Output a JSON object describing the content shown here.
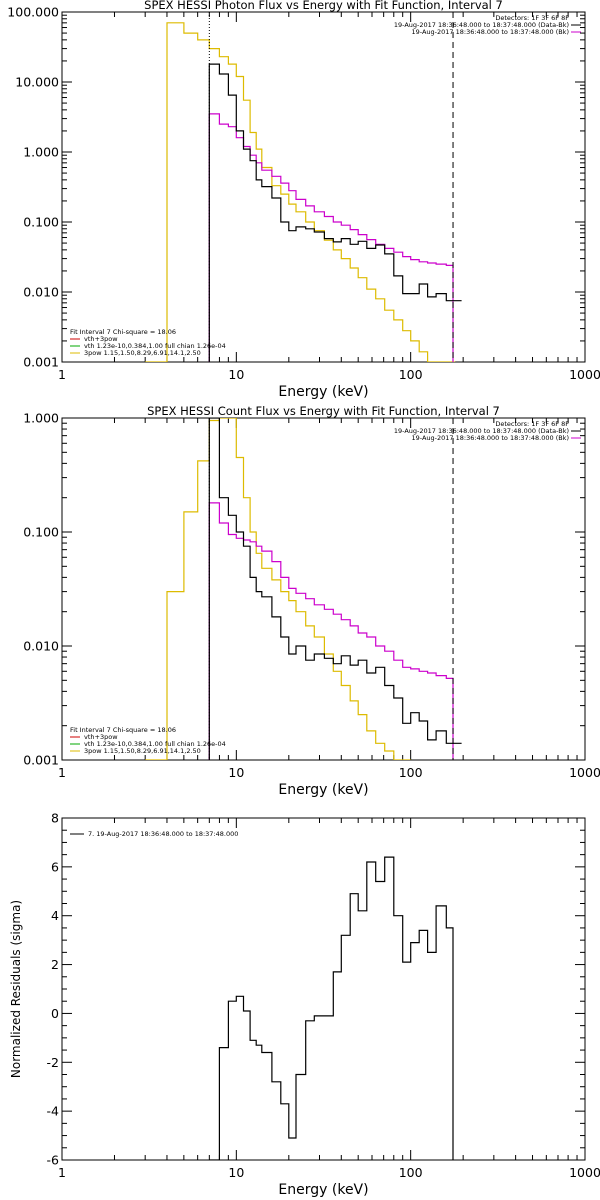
{
  "figure": {
    "background": "#ffffff",
    "axis_color": "#000000"
  },
  "chart_data": [
    {
      "type": "line",
      "title": "SPEX HESSI Photon Flux vs Energy with Fit Function, Interval 7",
      "xlabel": "Energy (keV)",
      "ylabel": "",
      "xscale": "log",
      "yscale": "log",
      "xlim": [
        1,
        1000
      ],
      "ylim": [
        0.001,
        100
      ],
      "xticks": [
        1,
        10,
        100,
        1000
      ],
      "xtick_labels": [
        "1",
        "10",
        "100",
        "1000"
      ],
      "yticks": [
        0.001,
        0.01,
        0.1,
        1,
        10,
        100
      ],
      "ytick_labels": [
        "0.001",
        "0.010",
        "0.100",
        "1.000",
        "10.000",
        "100.000"
      ],
      "vlines": [
        {
          "x": 7,
          "style": "dotted",
          "color": "#000000"
        },
        {
          "x": 175,
          "style": "dashed",
          "color": "#000000"
        }
      ],
      "header": [
        {
          "text": "Detectors: 1F 3F 6F 8F",
          "color": "#000000"
        },
        {
          "text": "19-Aug-2017 18:36:48.000 to 18:37:48.000 (Data-Bk)",
          "color": "#000000"
        },
        {
          "text": "19-Aug-2017 18:36:48.000 to 18:37:48.000 (Bk)",
          "color": "#000000"
        }
      ],
      "legend": [
        {
          "text": "Fit Interval 7    Chi-square = 18.06",
          "color": "#000000"
        },
        {
          "text": "vth+3pow",
          "color": "#cc0000"
        },
        {
          "text": "vth 1.23e-10,0.384,1.00  full chian 1.26e-04",
          "color": "#00aa00"
        },
        {
          "text": "3pow 1.15,1.50,8.29,6.91,14.1,2.50",
          "color": "#ddbb00"
        }
      ],
      "series": [
        {
          "color": "#ddbb00",
          "stroke": "step",
          "x": [
            3,
            4,
            5,
            6,
            7,
            8,
            9,
            10,
            11,
            12,
            13,
            14,
            16,
            18,
            20,
            22,
            25,
            28,
            32,
            36,
            40,
            45,
            50,
            56,
            63,
            71,
            80,
            90,
            100,
            112,
            125,
            140,
            160,
            180
          ],
          "y": [
            0.001,
            70,
            50,
            40,
            30,
            23,
            18,
            12,
            5.5,
            1.9,
            1.1,
            0.6,
            0.33,
            0.25,
            0.18,
            0.14,
            0.1,
            0.075,
            0.055,
            0.04,
            0.03,
            0.022,
            0.016,
            0.011,
            0.008,
            0.0055,
            0.004,
            0.0028,
            0.002,
            0.0014,
            0.001,
            0.001,
            0.001,
            0.001
          ]
        },
        {
          "color": "#cc00cc",
          "stroke": "step",
          "x": [
            7,
            8,
            9,
            10,
            11,
            12,
            13,
            14,
            16,
            18,
            20,
            22,
            25,
            28,
            32,
            36,
            40,
            45,
            50,
            56,
            63,
            71,
            80,
            90,
            100,
            112,
            125,
            140,
            160,
            175
          ],
          "y": [
            3.5,
            2.5,
            2.3,
            1.6,
            1.2,
            0.9,
            0.7,
            0.55,
            0.45,
            0.36,
            0.28,
            0.21,
            0.17,
            0.14,
            0.12,
            0.1,
            0.09,
            0.078,
            0.066,
            0.056,
            0.048,
            0.042,
            0.037,
            0.032,
            0.029,
            0.027,
            0.026,
            0.025,
            0.024,
            0.001
          ]
        },
        {
          "color": "#000000",
          "stroke": "step",
          "x": [
            7,
            8,
            9,
            10,
            11,
            12,
            13,
            14,
            16,
            18,
            20,
            22,
            25,
            28,
            32,
            36,
            40,
            45,
            50,
            56,
            63,
            71,
            80,
            90,
            100,
            112,
            125,
            140,
            160,
            175
          ],
          "y": [
            18,
            13,
            6.5,
            2,
            1.1,
            0.75,
            0.4,
            0.32,
            0.22,
            0.1,
            0.075,
            0.085,
            0.08,
            0.072,
            0.058,
            0.052,
            0.058,
            0.048,
            0.053,
            0.042,
            0.047,
            0.035,
            0.017,
            0.0095,
            0.0095,
            0.013,
            0.0085,
            0.0095,
            0.0075,
            0.0075
          ]
        }
      ]
    },
    {
      "type": "line",
      "title": "SPEX HESSI Count Flux vs Energy with Fit Function, Interval 7",
      "xlabel": "Energy (keV)",
      "ylabel": "",
      "xscale": "log",
      "yscale": "log",
      "xlim": [
        1,
        1000
      ],
      "ylim": [
        0.001,
        1
      ],
      "xticks": [
        1,
        10,
        100,
        1000
      ],
      "xtick_labels": [
        "1",
        "10",
        "100",
        "1000"
      ],
      "yticks": [
        0.001,
        0.01,
        0.1,
        1
      ],
      "ytick_labels": [
        "0.001",
        "0.010",
        "0.100",
        "1.000"
      ],
      "vlines": [
        {
          "x": 7,
          "style": "dotted",
          "color": "#000000"
        },
        {
          "x": 175,
          "style": "dashed",
          "color": "#000000"
        }
      ],
      "header": [
        {
          "text": "Detectors: 1F 3F 6F 8F",
          "color": "#000000"
        },
        {
          "text": "19-Aug-2017 18:36:48.000 to 18:37:48.000 (Data-Bk)",
          "color": "#000000"
        },
        {
          "text": "19-Aug-2017 18:36:48.000 to 18:37:48.000 (Bk)",
          "color": "#000000"
        }
      ],
      "legend": [
        {
          "text": "Fit Interval 7    Chi-square = 18.06",
          "color": "#000000"
        },
        {
          "text": "vth+3pow",
          "color": "#cc0000"
        },
        {
          "text": "vth 1.23e-10,0.384,1.00  full chian 1.26e-04",
          "color": "#00aa00"
        },
        {
          "text": "3pow 1.15,1.50,8.29,6.91,14.1,2.50",
          "color": "#ddbb00"
        }
      ],
      "series": [
        {
          "color": "#ddbb00",
          "stroke": "step",
          "x": [
            3,
            4,
            5,
            6,
            7,
            8,
            9,
            10,
            11,
            12,
            13,
            14,
            16,
            18,
            20,
            22,
            25,
            28,
            32,
            36,
            40,
            45,
            50,
            56,
            63,
            71,
            80,
            90,
            100
          ],
          "y": [
            0.001,
            0.03,
            0.15,
            0.42,
            0.95,
            1.2,
            1.0,
            0.45,
            0.2,
            0.1,
            0.065,
            0.048,
            0.038,
            0.03,
            0.025,
            0.02,
            0.015,
            0.012,
            0.0085,
            0.006,
            0.0045,
            0.0033,
            0.0025,
            0.0018,
            0.0014,
            0.0012,
            0.001,
            0.001,
            0.001
          ]
        },
        {
          "color": "#cc00cc",
          "stroke": "step",
          "x": [
            7,
            8,
            9,
            10,
            11,
            12,
            13,
            14,
            16,
            18,
            20,
            22,
            25,
            28,
            32,
            36,
            40,
            45,
            50,
            56,
            63,
            71,
            80,
            90,
            100,
            112,
            125,
            140,
            160,
            175
          ],
          "y": [
            0.18,
            0.12,
            0.095,
            0.088,
            0.085,
            0.082,
            0.075,
            0.068,
            0.055,
            0.04,
            0.032,
            0.029,
            0.026,
            0.023,
            0.021,
            0.019,
            0.017,
            0.015,
            0.013,
            0.012,
            0.01,
            0.009,
            0.0075,
            0.0065,
            0.0063,
            0.006,
            0.0058,
            0.0055,
            0.0052,
            0.001
          ]
        },
        {
          "color": "#000000",
          "stroke": "step",
          "x": [
            7,
            8,
            9,
            10,
            11,
            12,
            13,
            14,
            16,
            18,
            20,
            22,
            25,
            28,
            32,
            36,
            40,
            45,
            50,
            56,
            63,
            71,
            80,
            90,
            100,
            112,
            125,
            140,
            160,
            175
          ],
          "y": [
            1.0,
            0.2,
            0.14,
            0.1,
            0.075,
            0.04,
            0.03,
            0.027,
            0.018,
            0.012,
            0.0085,
            0.01,
            0.0075,
            0.0085,
            0.0078,
            0.007,
            0.0082,
            0.0068,
            0.0075,
            0.0058,
            0.0065,
            0.0045,
            0.0035,
            0.0021,
            0.0026,
            0.0022,
            0.0015,
            0.0018,
            0.0014,
            0.0014
          ]
        }
      ]
    },
    {
      "type": "line",
      "title": "",
      "xlabel": "Energy (keV)",
      "ylabel": "Normalized Residuals (sigma)",
      "xscale": "log",
      "yscale": "linear",
      "xlim": [
        1,
        1000
      ],
      "ylim": [
        -6,
        8
      ],
      "xticks": [
        1,
        10,
        100,
        1000
      ],
      "xtick_labels": [
        "1",
        "10",
        "100",
        "1000"
      ],
      "yticks": [
        -6,
        -4,
        -2,
        0,
        2,
        4,
        6,
        8
      ],
      "ytick_labels": [
        "-6",
        "-4",
        "-2",
        "0",
        "2",
        "4",
        "6",
        "8"
      ],
      "vlines": [],
      "header": [],
      "legend": [
        {
          "text": "7. 19-Aug-2017 18:36:48.000 to 18:37:48.000",
          "color": "#000000",
          "line": true
        }
      ],
      "series": [
        {
          "color": "#000000",
          "stroke": "step",
          "x": [
            7,
            8,
            9,
            10,
            11,
            12,
            13,
            14,
            16,
            18,
            20,
            22,
            25,
            28,
            32,
            36,
            40,
            45,
            50,
            56,
            63,
            71,
            80,
            90,
            100,
            112,
            125,
            140,
            160,
            175
          ],
          "y": [
            -6,
            -1.4,
            0.5,
            0.7,
            0.1,
            -1.1,
            -1.3,
            -1.6,
            -2.8,
            -3.7,
            -5.1,
            -2.5,
            -0.3,
            -0.1,
            -0.1,
            1.7,
            3.2,
            4.9,
            4.2,
            6.2,
            5.4,
            6.4,
            4.0,
            2.1,
            2.9,
            3.4,
            2.5,
            4.4,
            3.5,
            -6
          ]
        }
      ]
    }
  ]
}
